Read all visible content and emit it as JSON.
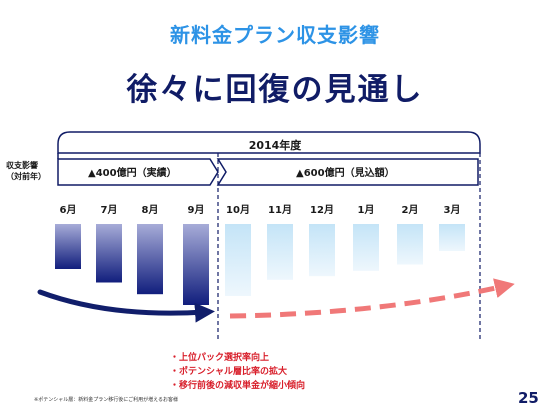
{
  "slide": {
    "subtitle": "新料金プラン収支影響",
    "headline": "徐々に回復の見通し",
    "side_label_line1": "収支影響",
    "side_label_line2": "（対前年）",
    "fiscal_year_label": "2014年度",
    "period_actual_label": "▲400億円（実績）",
    "period_forecast_label": "▲600億円（見込額）",
    "notes": [
      "・上位パック選択率向上",
      "・ポテンシャル層比率の拡大",
      "・移行前後の減収単金が縮小傾向"
    ],
    "footnote": "※ポテンシャル層：新料金プラン移行後にご利用が増えるお客様",
    "page_number": "25"
  },
  "chart_data": {
    "type": "bar",
    "title": "",
    "xlabel": "",
    "ylabel": "",
    "categories": [
      "6月",
      "7月",
      "8月",
      "9月",
      "10月",
      "11月",
      "12月",
      "1月",
      "2月",
      "3月"
    ],
    "series": [
      {
        "name": "",
        "values": [
          -50,
          -65,
          -78,
          -90,
          -80,
          -62,
          -58,
          -52,
          -45,
          -30
        ]
      }
    ],
    "kind": [
      "actual",
      "actual",
      "actual",
      "actual",
      "forecast",
      "forecast",
      "forecast",
      "forecast",
      "forecast",
      "forecast"
    ],
    "ylim": [
      -100,
      0
    ],
    "colors": {
      "actual_top": "#a7acd8",
      "actual_bottom": "#111e7d",
      "forecast_top": "#c4e4f7",
      "forecast_bottom": "#eef7fd",
      "trend_actual": "#111e6b",
      "trend_forecast": "#f07878",
      "frame": "#101c66"
    },
    "grid": false,
    "legend": "none"
  }
}
